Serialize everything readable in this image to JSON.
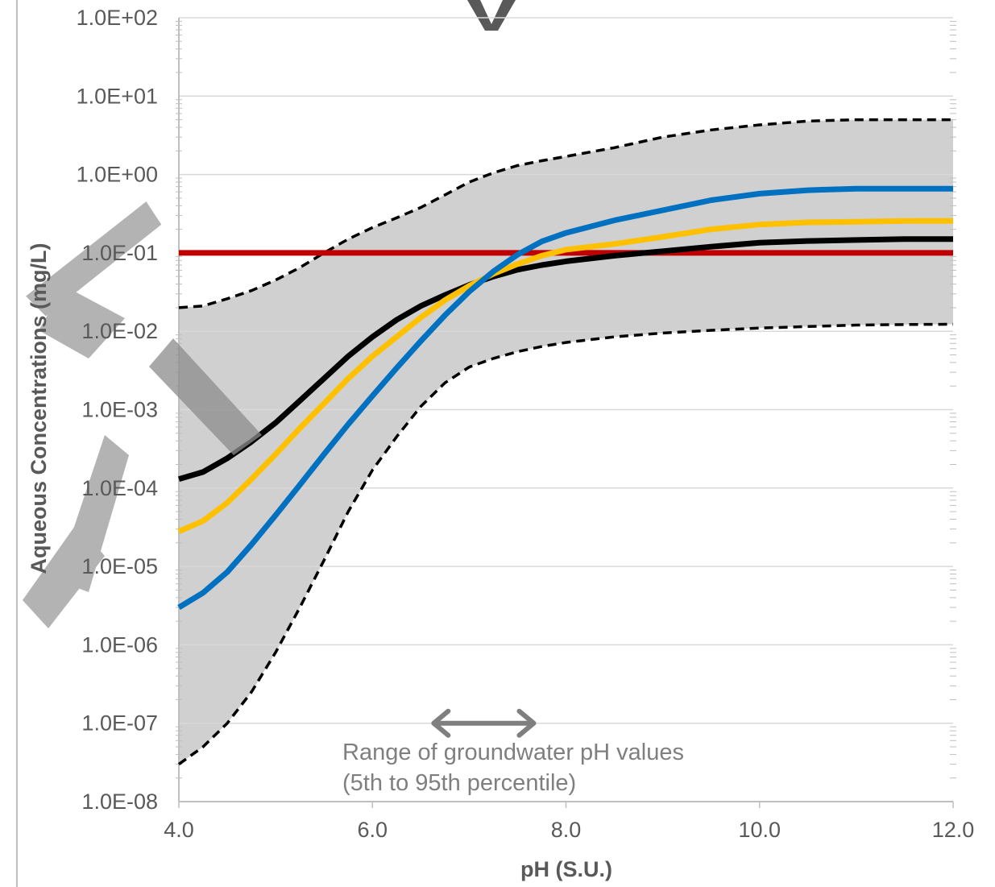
{
  "chart_data": {
    "type": "line",
    "title": "",
    "xlabel": "pH (S.U.)",
    "ylabel": "Aqueous Concentrations (mg/L)",
    "x_scale": "linear",
    "y_scale": "log",
    "xlim": [
      4.0,
      12.0
    ],
    "ylim": [
      1e-08,
      100
    ],
    "grid": true,
    "legend": "none",
    "x_ticks": [
      "4.0",
      "6.0",
      "8.0",
      "10.0",
      "12.0"
    ],
    "y_ticks": [
      "1.0E-08",
      "1.0E-07",
      "1.0E-06",
      "1.0E-05",
      "1.0E-04",
      "1.0E-03",
      "1.0E-02",
      "1.0E-01",
      "1.0E+00",
      "1.0E+01",
      "1.0E+02"
    ],
    "x": [
      4.0,
      4.25,
      4.5,
      4.75,
      5.0,
      5.25,
      5.5,
      5.75,
      6.0,
      6.25,
      6.5,
      6.75,
      7.0,
      7.25,
      7.5,
      7.75,
      8.0,
      8.5,
      9.0,
      9.5,
      10.0,
      10.5,
      11.0,
      11.5,
      12.0
    ],
    "series": [
      {
        "style": "dashed-upper-bound",
        "color": "#000000",
        "values": [
          0.02,
          0.021,
          0.026,
          0.033,
          0.045,
          0.065,
          0.1,
          0.15,
          0.21,
          0.28,
          0.38,
          0.55,
          0.8,
          1.05,
          1.3,
          1.5,
          1.7,
          2.2,
          3.0,
          3.7,
          4.3,
          4.8,
          5.0,
          5.0,
          5.0
        ]
      },
      {
        "style": "dashed-lower-bound",
        "color": "#000000",
        "values": [
          3e-08,
          5e-08,
          1e-07,
          2.5e-07,
          8e-07,
          3e-06,
          1.2e-05,
          5e-05,
          0.00017,
          0.00045,
          0.0011,
          0.0022,
          0.0035,
          0.0045,
          0.0055,
          0.0064,
          0.0072,
          0.0085,
          0.0095,
          0.0103,
          0.011,
          0.0115,
          0.012,
          0.0122,
          0.0123
        ]
      },
      {
        "style": "solid",
        "color": "#000000",
        "values": [
          0.00013,
          0.00016,
          0.00024,
          0.00039,
          0.00068,
          0.0013,
          0.0025,
          0.0048,
          0.0085,
          0.014,
          0.021,
          0.029,
          0.039,
          0.05,
          0.061,
          0.07,
          0.078,
          0.092,
          0.105,
          0.12,
          0.135,
          0.142,
          0.146,
          0.15,
          0.15
        ]
      },
      {
        "style": "solid",
        "color": "#FFC000",
        "values": [
          2.8e-05,
          3.8e-05,
          6.5e-05,
          0.00013,
          0.00027,
          0.00058,
          0.0012,
          0.0025,
          0.0048,
          0.0085,
          0.015,
          0.025,
          0.038,
          0.054,
          0.072,
          0.092,
          0.11,
          0.13,
          0.16,
          0.2,
          0.23,
          0.245,
          0.25,
          0.255,
          0.255
        ]
      },
      {
        "style": "solid",
        "color": "#0070C0",
        "values": [
          3e-06,
          4.6e-06,
          8.5e-06,
          1.9e-05,
          4.5e-05,
          0.00011,
          0.00027,
          0.00065,
          0.0015,
          0.0034,
          0.0075,
          0.016,
          0.032,
          0.058,
          0.095,
          0.14,
          0.18,
          0.26,
          0.35,
          0.47,
          0.57,
          0.63,
          0.66,
          0.66,
          0.66
        ]
      },
      {
        "style": "solid-reference",
        "color": "#C00000",
        "values": [
          0.1,
          0.1,
          0.1,
          0.1,
          0.1,
          0.1,
          0.1,
          0.1,
          0.1,
          0.1,
          0.1,
          0.1,
          0.1,
          0.1,
          0.1,
          0.1,
          0.1,
          0.1,
          0.1,
          0.1,
          0.1,
          0.1,
          0.1,
          0.1,
          0.1
        ]
      }
    ],
    "band_fill_color": "#D0D0D0",
    "range_arrow": {
      "x_start": 6.6,
      "x_end": 7.7,
      "y": 1e-07,
      "color": "#7f7f7f"
    },
    "annotations": [
      "Range of groundwater pH values",
      "(5th to 95th percentile)"
    ]
  }
}
